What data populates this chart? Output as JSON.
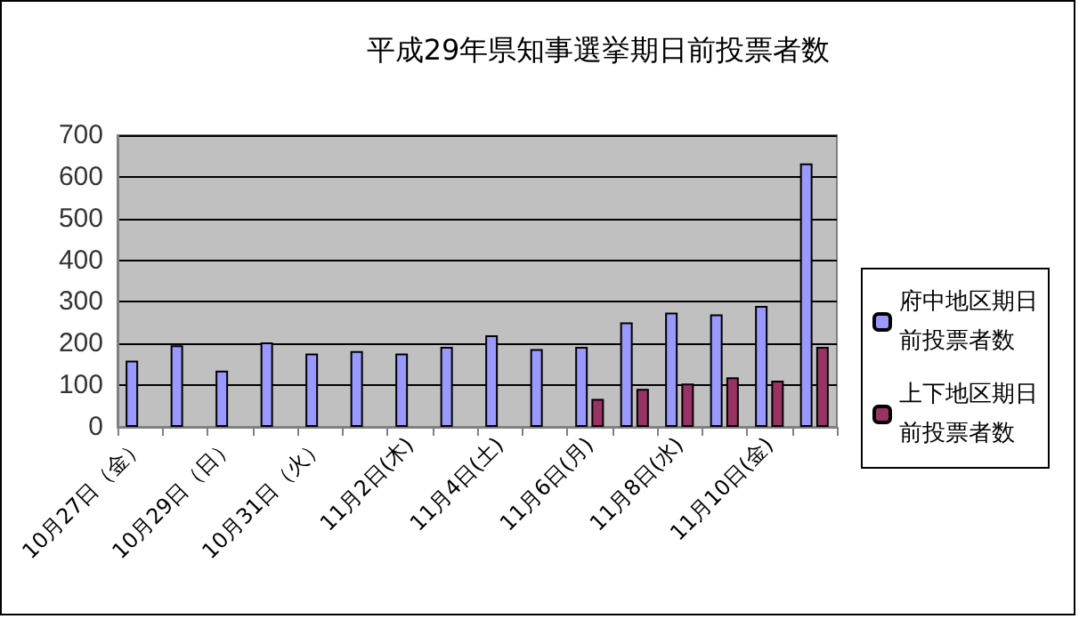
{
  "chart_data": {
    "type": "bar",
    "title": "平成29年県知事選挙期日前投票者数",
    "categories": [
      "10月27日（金）",
      null,
      "10月29日（日）",
      null,
      "10月31日（火）",
      null,
      "11月2日(木)",
      null,
      "11月4日(土)",
      null,
      "11月6日(月)",
      null,
      "11月8日(水)",
      null,
      "11月10日(金)",
      null
    ],
    "series": [
      {
        "name": "府中地区期日前投票者数",
        "color": "#9999ff",
        "values": [
          159,
          196,
          135,
          203,
          176,
          182,
          176,
          192,
          220,
          187,
          192,
          251,
          274,
          270,
          290,
          632
        ]
      },
      {
        "name": "上下地区期日前投票者数",
        "color": "#993366",
        "values": [
          null,
          null,
          null,
          null,
          null,
          null,
          null,
          null,
          null,
          null,
          67,
          91,
          104,
          119,
          111,
          192
        ]
      }
    ],
    "ylim": [
      0,
      700
    ],
    "yticks": [
      0,
      100,
      200,
      300,
      400,
      500,
      600,
      700
    ],
    "grid": "y",
    "legend": "right"
  }
}
